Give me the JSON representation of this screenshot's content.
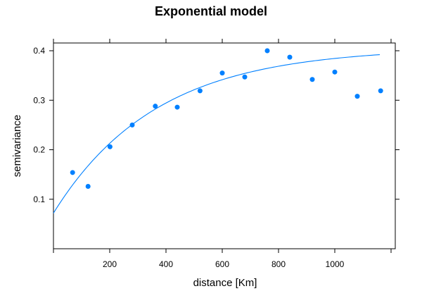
{
  "chart_data": {
    "type": "scatter",
    "title": "Exponential model",
    "xlabel": "distance [Km]",
    "ylabel": "semivariance",
    "xlim": [
      0,
      1200
    ],
    "ylim": [
      0,
      0.4
    ],
    "x_ticks": [
      200,
      400,
      600,
      800,
      1000
    ],
    "y_ticks": [
      0.1,
      0.2,
      0.3,
      0.4
    ],
    "grid": false,
    "colors": {
      "points": "#0080ff",
      "curve": "#0080ff"
    },
    "series": [
      {
        "type": "scatter",
        "x": [
          68,
          123,
          201,
          280,
          362,
          440,
          521,
          600,
          680,
          760,
          840,
          920,
          1000,
          1080,
          1163
        ],
        "y": [
          0.154,
          0.126,
          0.206,
          0.25,
          0.288,
          0.286,
          0.319,
          0.355,
          0.347,
          0.4,
          0.387,
          0.342,
          0.357,
          0.308,
          0.319
        ]
      },
      {
        "type": "line",
        "model": "exponential",
        "nugget": 0.072,
        "sill": 0.406,
        "range": 365,
        "x": [
          0,
          100,
          200,
          300,
          400,
          500,
          600,
          700,
          800,
          900,
          1000,
          1100,
          1160
        ],
        "y": [
          0.072,
          0.144,
          0.199,
          0.241,
          0.273,
          0.297,
          0.316,
          0.329,
          0.34,
          0.348,
          0.354,
          0.358,
          0.362
        ]
      }
    ]
  }
}
